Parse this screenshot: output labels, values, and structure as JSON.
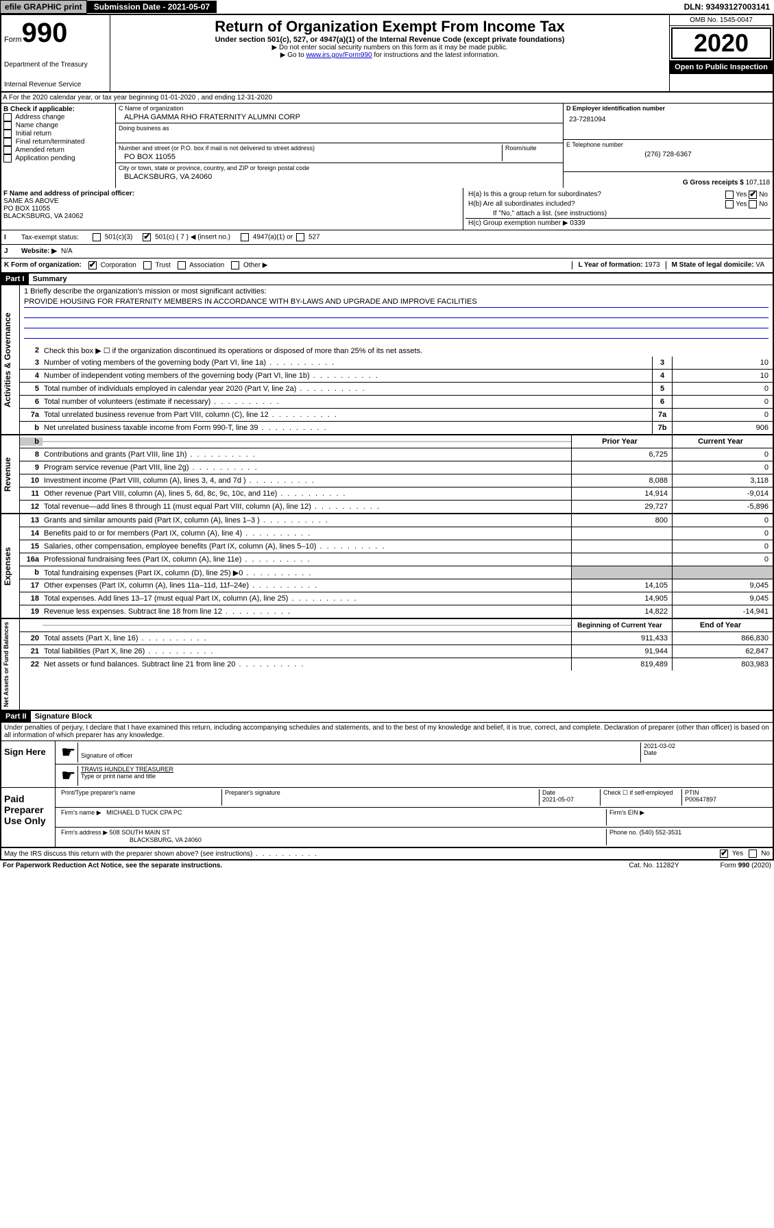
{
  "top": {
    "efile": "efile GRAPHIC print",
    "submission": "Submission Date - 2021-05-07",
    "dln": "DLN: 93493127003141"
  },
  "header": {
    "form_label": "Form",
    "form_num": "990",
    "dept1": "Department of the Treasury",
    "dept2": "Internal Revenue Service",
    "title": "Return of Organization Exempt From Income Tax",
    "subtitle": "Under section 501(c), 527, or 4947(a)(1) of the Internal Revenue Code (except private foundations)",
    "note1": "▶ Do not enter social security numbers on this form as it may be made public.",
    "note2_pre": "▶ Go to ",
    "note2_link": "www.irs.gov/Form990",
    "note2_post": " for instructions and the latest information.",
    "omb": "OMB No. 1545-0047",
    "year": "2020",
    "open": "Open to Public Inspection"
  },
  "section_a": "A For the 2020 calendar year, or tax year beginning 01-01-2020   , and ending 12-31-2020",
  "box_b": {
    "label": "B Check if applicable:",
    "items": [
      "Address change",
      "Name change",
      "Initial return",
      "Final return/terminated",
      "Amended return",
      "Application pending"
    ]
  },
  "box_c": {
    "name_label": "C Name of organization",
    "name": "ALPHA GAMMA RHO FRATERNITY ALUMNI CORP",
    "dba_label": "Doing business as",
    "addr_label": "Number and street (or P.O. box if mail is not delivered to street address)",
    "room_label": "Room/suite",
    "addr": "PO BOX 11055",
    "city_label": "City or town, state or province, country, and ZIP or foreign postal code",
    "city": "BLACKSBURG, VA  24060"
  },
  "box_d": {
    "ein_label": "D Employer identification number",
    "ein": "23-7281094",
    "phone_label": "E Telephone number",
    "phone": "(276) 728-6367",
    "gross_label": "G Gross receipts $",
    "gross": "107,118"
  },
  "box_f": {
    "label": "F  Name and address of principal officer:",
    "line1": "SAME AS ABOVE",
    "line2": "PO BOX 11055",
    "line3": "BLACKSBURG, VA  24062"
  },
  "box_h": {
    "ha": "H(a)  Is this a group return for subordinates?",
    "hb": "H(b)  Are all subordinates included?",
    "hb_note": "If \"No,\" attach a list. (see instructions)",
    "hc": "H(c)  Group exemption number ▶   0339",
    "yes": "Yes",
    "no": "No"
  },
  "row_i": {
    "label": "Tax-exempt status:",
    "opt1": "501(c)(3)",
    "opt2": "501(c) ( 7 ) ◀ (insert no.)",
    "opt3": "4947(a)(1) or",
    "opt4": "527"
  },
  "row_j": {
    "label": "Website: ▶",
    "val": "N/A"
  },
  "row_k": {
    "label": "K Form of organization:",
    "corp": "Corporation",
    "trust": "Trust",
    "assoc": "Association",
    "other": "Other ▶",
    "l_label": "L Year of formation:",
    "l_val": "1973",
    "m_label": "M State of legal domicile:",
    "m_val": "VA"
  },
  "part1": {
    "header": "Part I",
    "title": "Summary",
    "line1_label": "1  Briefly describe the organization's mission or most significant activities:",
    "mission": "PROVIDE HOUSING FOR FRATERNITY MEMBERS IN ACCORDANCE WITH BY-LAWS AND UPGRADE AND IMPROVE FACILITIES",
    "line2": "Check this box ▶ ☐  if the organization discontinued its operations or disposed of more than 25% of its net assets.",
    "lines_gov": [
      {
        "num": "3",
        "text": "Number of voting members of the governing body (Part VI, line 1a)",
        "box": "3",
        "val": "10"
      },
      {
        "num": "4",
        "text": "Number of independent voting members of the governing body (Part VI, line 1b)",
        "box": "4",
        "val": "10"
      },
      {
        "num": "5",
        "text": "Total number of individuals employed in calendar year 2020 (Part V, line 2a)",
        "box": "5",
        "val": "0"
      },
      {
        "num": "6",
        "text": "Total number of volunteers (estimate if necessary)",
        "box": "6",
        "val": "0"
      },
      {
        "num": "7a",
        "text": "Total unrelated business revenue from Part VIII, column (C), line 12",
        "box": "7a",
        "val": "0"
      },
      {
        "num": "b",
        "text": "Net unrelated business taxable income from Form 990-T, line 39",
        "box": "7b",
        "val": "906"
      }
    ],
    "col_prior": "Prior Year",
    "col_current": "Current Year",
    "lines_rev": [
      {
        "num": "8",
        "text": "Contributions and grants (Part VIII, line 1h)",
        "prior": "6,725",
        "curr": "0"
      },
      {
        "num": "9",
        "text": "Program service revenue (Part VIII, line 2g)",
        "prior": "",
        "curr": "0"
      },
      {
        "num": "10",
        "text": "Investment income (Part VIII, column (A), lines 3, 4, and 7d )",
        "prior": "8,088",
        "curr": "3,118"
      },
      {
        "num": "11",
        "text": "Other revenue (Part VIII, column (A), lines 5, 6d, 8c, 9c, 10c, and 11e)",
        "prior": "14,914",
        "curr": "-9,014"
      },
      {
        "num": "12",
        "text": "Total revenue—add lines 8 through 11 (must equal Part VIII, column (A), line 12)",
        "prior": "29,727",
        "curr": "-5,896"
      }
    ],
    "lines_exp": [
      {
        "num": "13",
        "text": "Grants and similar amounts paid (Part IX, column (A), lines 1–3 )",
        "prior": "800",
        "curr": "0"
      },
      {
        "num": "14",
        "text": "Benefits paid to or for members (Part IX, column (A), line 4)",
        "prior": "",
        "curr": "0"
      },
      {
        "num": "15",
        "text": "Salaries, other compensation, employee benefits (Part IX, column (A), lines 5–10)",
        "prior": "",
        "curr": "0"
      },
      {
        "num": "16a",
        "text": "Professional fundraising fees (Part IX, column (A), line 11e)",
        "prior": "",
        "curr": "0"
      },
      {
        "num": "b",
        "text": "Total fundraising expenses (Part IX, column (D), line 25) ▶0",
        "prior": "",
        "curr": "",
        "shaded": true
      },
      {
        "num": "17",
        "text": "Other expenses (Part IX, column (A), lines 11a–11d, 11f–24e)",
        "prior": "14,105",
        "curr": "9,045"
      },
      {
        "num": "18",
        "text": "Total expenses. Add lines 13–17 (must equal Part IX, column (A), line 25)",
        "prior": "14,905",
        "curr": "9,045"
      },
      {
        "num": "19",
        "text": "Revenue less expenses. Subtract line 18 from line 12",
        "prior": "14,822",
        "curr": "-14,941"
      }
    ],
    "col_begin": "Beginning of Current Year",
    "col_end": "End of Year",
    "lines_net": [
      {
        "num": "20",
        "text": "Total assets (Part X, line 16)",
        "prior": "911,433",
        "curr": "866,830"
      },
      {
        "num": "21",
        "text": "Total liabilities (Part X, line 26)",
        "prior": "91,944",
        "curr": "62,847"
      },
      {
        "num": "22",
        "text": "Net assets or fund balances. Subtract line 21 from line 20",
        "prior": "819,489",
        "curr": "803,983"
      }
    ],
    "side_gov": "Activities & Governance",
    "side_rev": "Revenue",
    "side_exp": "Expenses",
    "side_net": "Net Assets or Fund Balances"
  },
  "part2": {
    "header": "Part II",
    "title": "Signature Block",
    "perjury": "Under penalties of perjury, I declare that I have examined this return, including accompanying schedules and statements, and to the best of my knowledge and belief, it is true, correct, and complete. Declaration of preparer (other than officer) is based on all information of which preparer has any knowledge.",
    "sign_here": "Sign Here",
    "sig_officer": "Signature of officer",
    "sig_date": "2021-03-02",
    "date_label": "Date",
    "officer_name": "TRAVIS HUNDLEY  TREASURER",
    "type_name": "Type or print name and title",
    "paid": "Paid Preparer Use Only",
    "prep_name_label": "Print/Type preparer's name",
    "prep_sig_label": "Preparer's signature",
    "prep_date_label": "Date",
    "prep_date": "2021-05-07",
    "check_if": "Check ☐ if self-employed",
    "ptin_label": "PTIN",
    "ptin": "P00647897",
    "firm_name_label": "Firm's name    ▶",
    "firm_name": "MICHAEL D TUCK CPA PC",
    "firm_ein_label": "Firm's EIN ▶",
    "firm_addr_label": "Firm's address ▶",
    "firm_addr1": "508 SOUTH MAIN ST",
    "firm_addr2": "BLACKSBURG, VA  24060",
    "firm_phone_label": "Phone no.",
    "firm_phone": "(540) 552-3531"
  },
  "footer": {
    "discuss": "May the IRS discuss this return with the preparer shown above? (see instructions)",
    "yes": "Yes",
    "no": "No",
    "paperwork": "For Paperwork Reduction Act Notice, see the separate instructions.",
    "cat": "Cat. No. 11282Y",
    "form": "Form 990 (2020)"
  }
}
